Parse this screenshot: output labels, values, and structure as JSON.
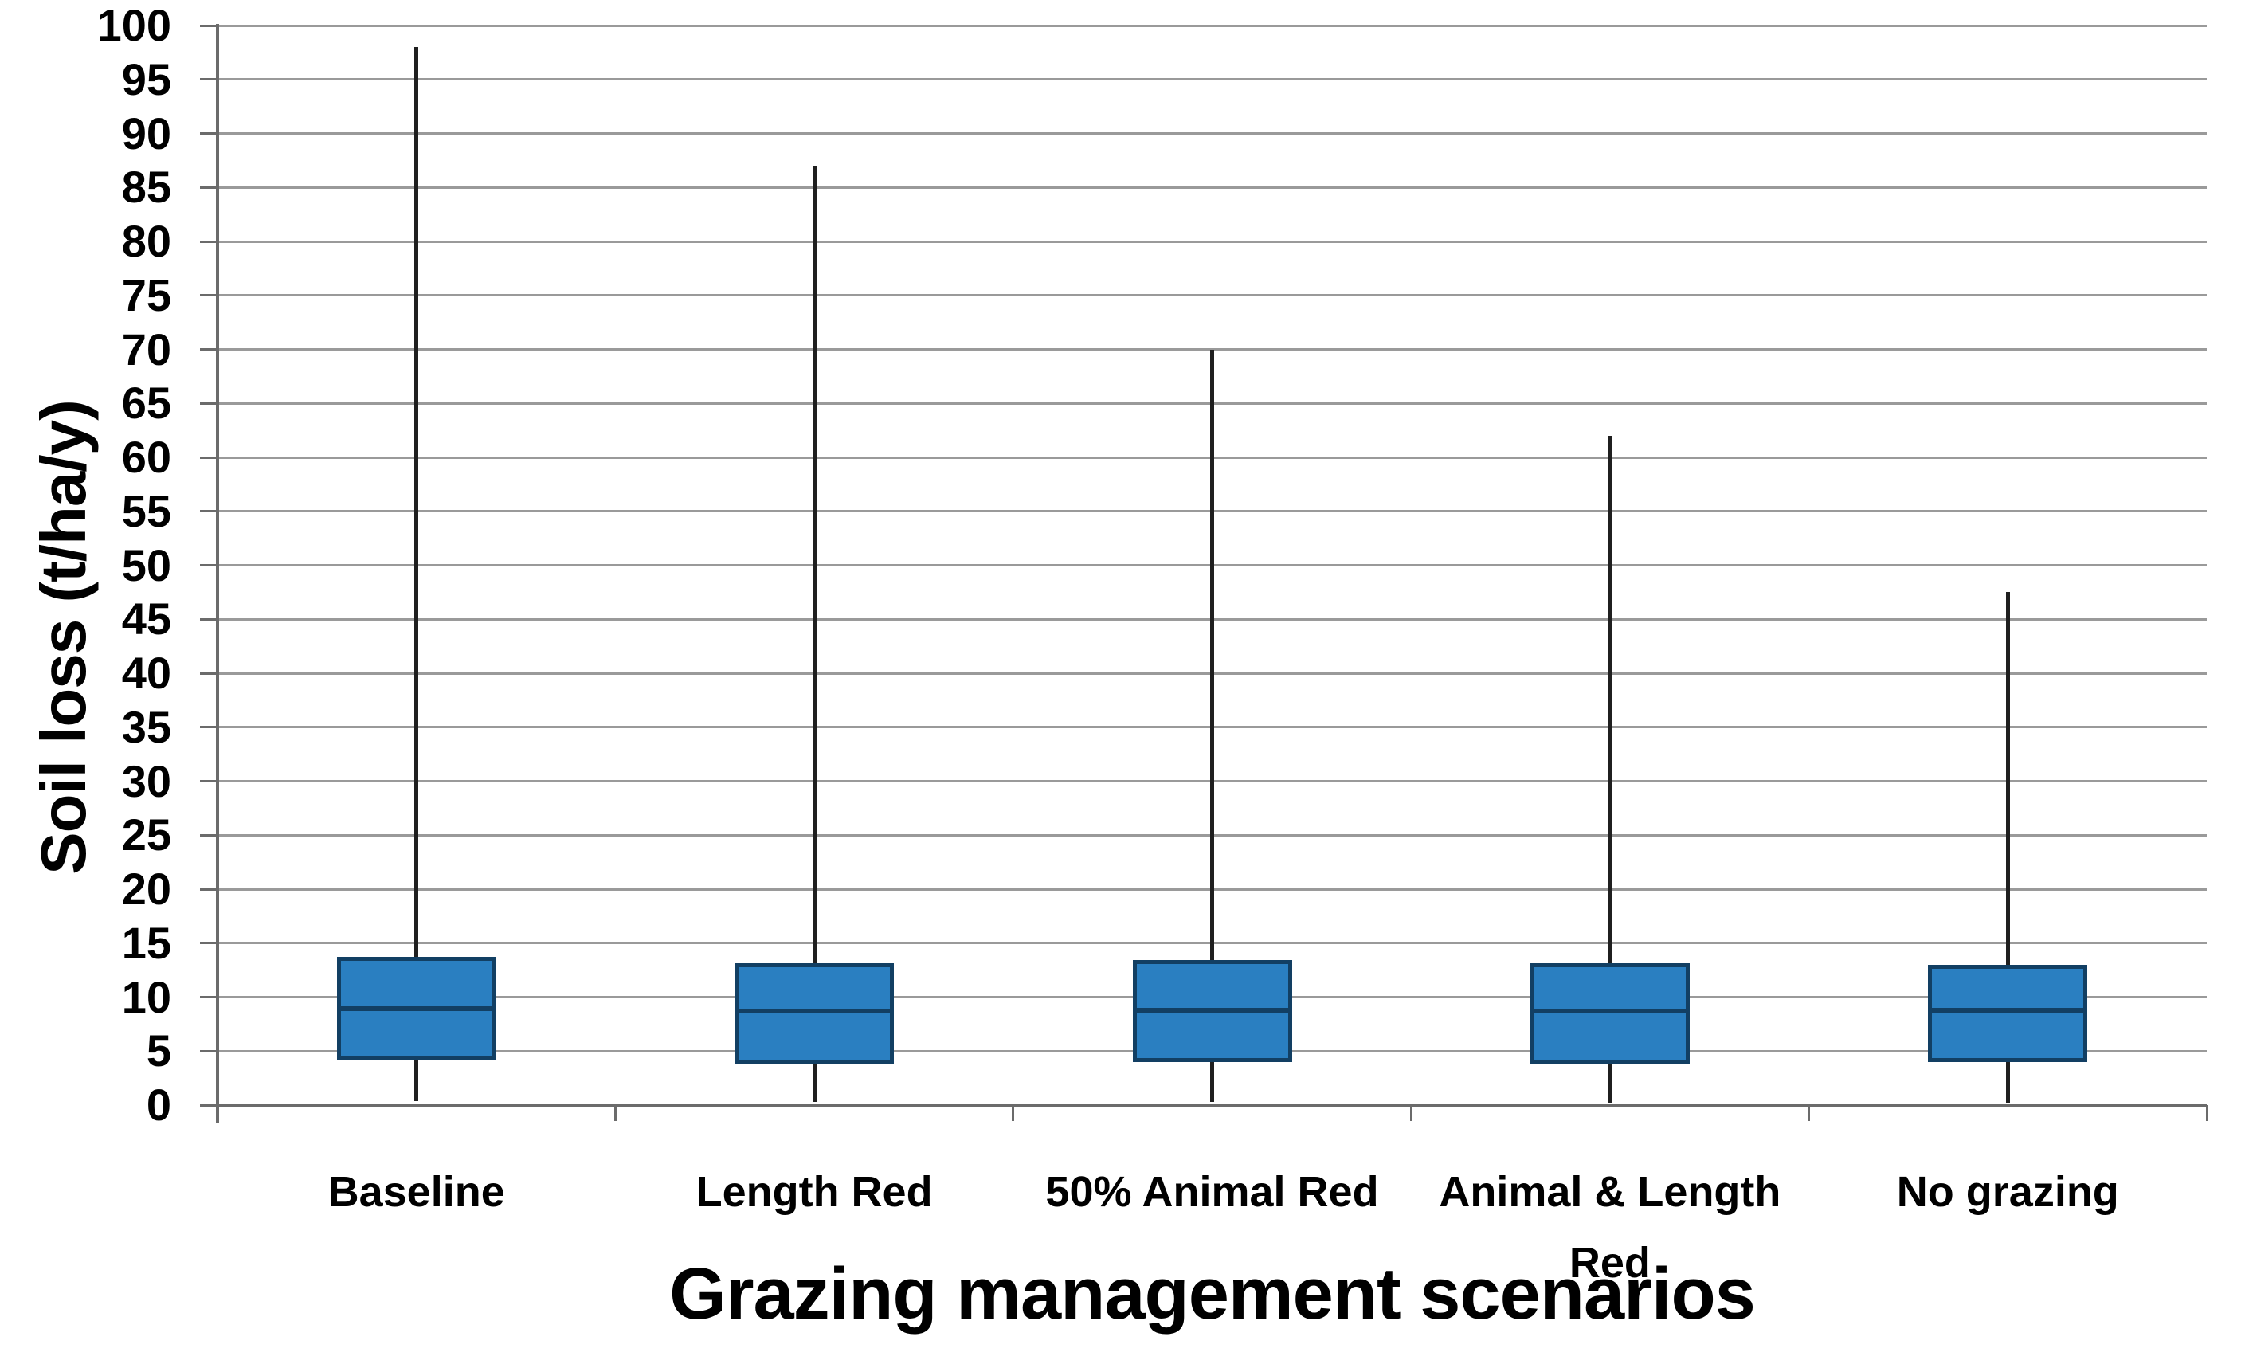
{
  "chart_data": {
    "type": "boxplot",
    "title": "",
    "xlabel": "Grazing management scenarios",
    "ylabel": "Soil loss (t/ha/y)",
    "ylim": [
      0,
      100
    ],
    "ytick_step": 5,
    "y_ticks": [
      0,
      5,
      10,
      15,
      20,
      25,
      30,
      35,
      40,
      45,
      50,
      55,
      60,
      65,
      70,
      75,
      80,
      85,
      90,
      95,
      100
    ],
    "grid": "horizontal",
    "legend": "none",
    "categories": [
      "Baseline",
      "Length Red",
      "50% Animal Red",
      "Animal & Length Red",
      "No grazing"
    ],
    "series": [
      {
        "category": "Baseline",
        "whisker_low": 0.4,
        "q1": 4.1,
        "median": 8.9,
        "q3": 13.7,
        "whisker_high": 98
      },
      {
        "category": "Length Red",
        "whisker_low": 0.3,
        "q1": 3.8,
        "median": 8.7,
        "q3": 13.1,
        "whisker_high": 87
      },
      {
        "category": "50% Animal Red",
        "whisker_low": 0.3,
        "q1": 4.0,
        "median": 8.8,
        "q3": 13.4,
        "whisker_high": 70
      },
      {
        "category": "Animal & Length Red",
        "whisker_low": 0.2,
        "q1": 3.8,
        "median": 8.7,
        "q3": 13.1,
        "whisker_high": 62
      },
      {
        "category": "No grazing",
        "whisker_low": 0.2,
        "q1": 4.0,
        "median": 8.8,
        "q3": 13.0,
        "whisker_high": 47.5
      }
    ],
    "colors": {
      "box_fill": "#2A7FC1",
      "box_border": "#123F63",
      "median": "#123F63",
      "whisker": "#1f1f1f",
      "gridline": "#9A9A9A",
      "axis": "#6b6b6b",
      "text": "#000000",
      "background": "#ffffff"
    }
  }
}
